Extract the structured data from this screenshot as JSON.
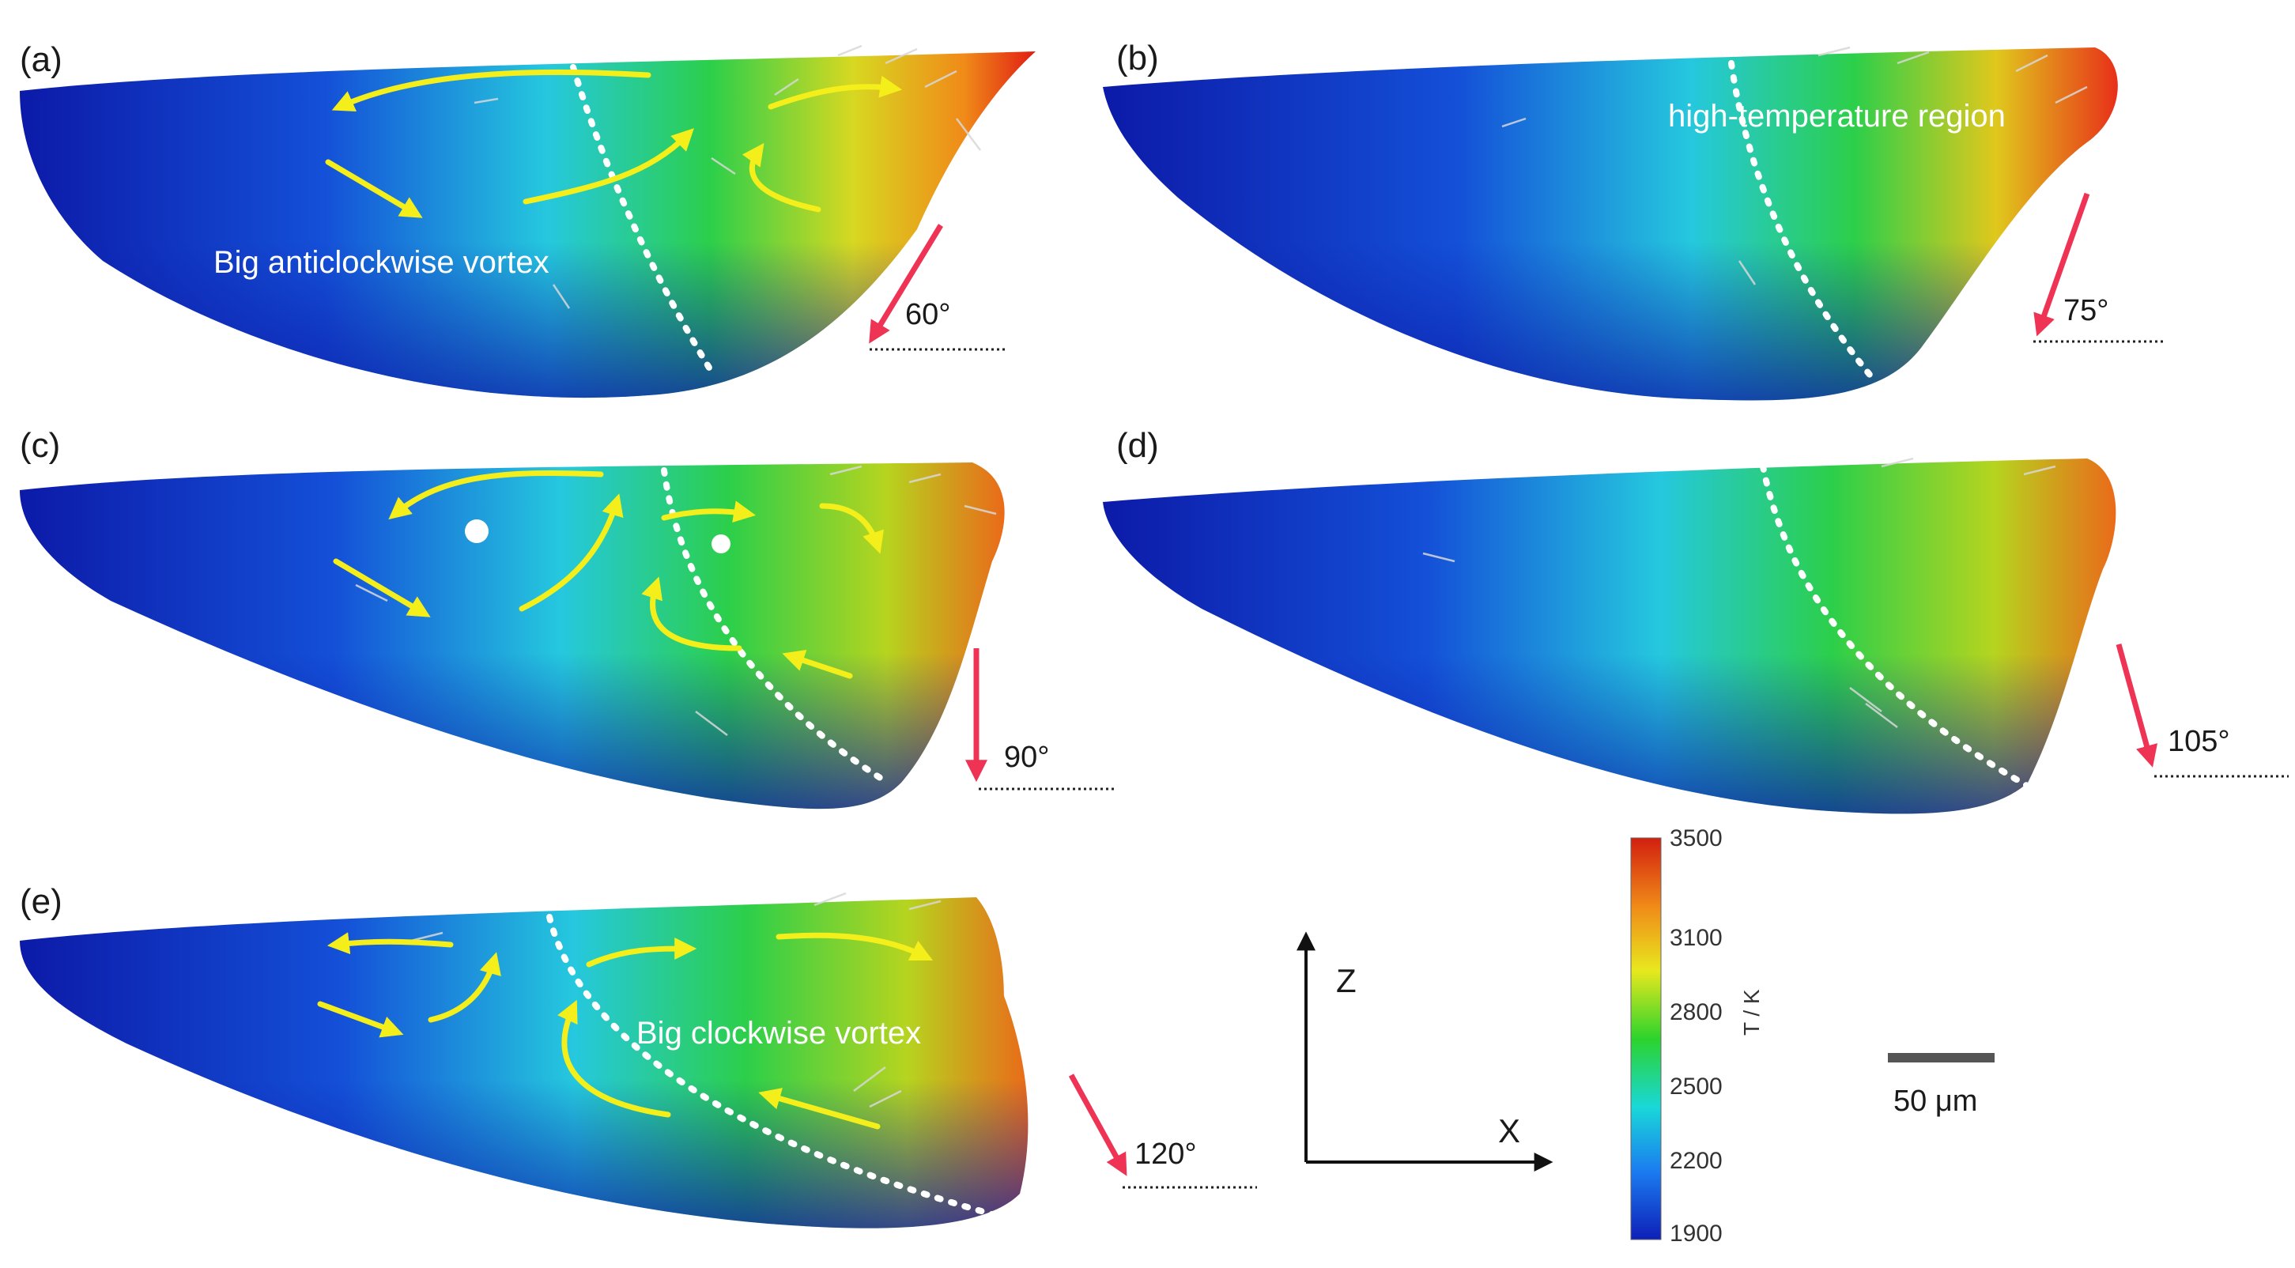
{
  "panels": [
    {
      "label": "(a)",
      "angle": "60°",
      "annotation": "Big anticlockwise vortex"
    },
    {
      "label": "(b)",
      "angle": "75°",
      "annotation": "high-temperature region"
    },
    {
      "label": "(c)",
      "angle": "90°",
      "annotation": ""
    },
    {
      "label": "(d)",
      "angle": "105°",
      "annotation": ""
    },
    {
      "label": "(e)",
      "angle": "120°",
      "annotation": "Big clockwise vortex"
    }
  ],
  "axes": {
    "z_label": "Z",
    "x_label": "X"
  },
  "colorbar": {
    "unit": "T / K",
    "ticks": [
      "3500",
      "3100",
      "2800",
      "2500",
      "2200",
      "1900"
    ],
    "colors": [
      "#d21f10",
      "#f08a18",
      "#e8e81e",
      "#2cd32c",
      "#19d8d8",
      "#1b7cf0",
      "#0e1fb8"
    ]
  },
  "scale_bar": {
    "label": "50 μm"
  },
  "colors": {
    "flow_arrow": "#f4ef1a",
    "laser_arrow": "#ee3355",
    "boundary": "#ffffff"
  }
}
